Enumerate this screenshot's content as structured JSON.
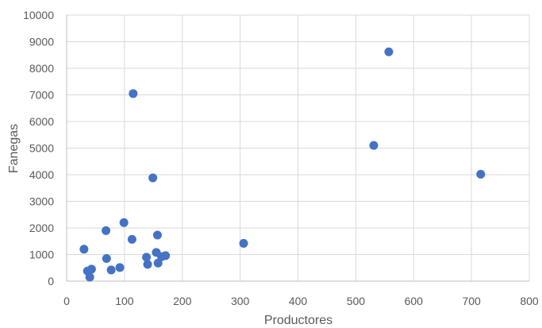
{
  "chart_data": {
    "type": "scatter",
    "title": "",
    "xlabel": "Productores",
    "ylabel": "Fanegas",
    "xlim": [
      0,
      800
    ],
    "ylim": [
      0,
      10000
    ],
    "x_ticks": [
      "0",
      "100",
      "200",
      "300",
      "400",
      "500",
      "600",
      "700",
      "800"
    ],
    "y_ticks": [
      "0",
      "1000",
      "2000",
      "3000",
      "4000",
      "5000",
      "6000",
      "7000",
      "8000",
      "9000",
      "10000"
    ],
    "grid": true,
    "legend": "none",
    "marker_color": "#4472c4",
    "series": [
      {
        "points": [
          {
            "x": 30,
            "y": 1200
          },
          {
            "x": 36,
            "y": 380
          },
          {
            "x": 40,
            "y": 150
          },
          {
            "x": 43,
            "y": 450
          },
          {
            "x": 68,
            "y": 1900
          },
          {
            "x": 69,
            "y": 850
          },
          {
            "x": 77,
            "y": 420
          },
          {
            "x": 92,
            "y": 510
          },
          {
            "x": 99,
            "y": 2200
          },
          {
            "x": 113,
            "y": 1570
          },
          {
            "x": 115,
            "y": 7050
          },
          {
            "x": 138,
            "y": 900
          },
          {
            "x": 140,
            "y": 630
          },
          {
            "x": 149,
            "y": 3880
          },
          {
            "x": 155,
            "y": 1080
          },
          {
            "x": 157,
            "y": 1730
          },
          {
            "x": 158,
            "y": 680
          },
          {
            "x": 164,
            "y": 920
          },
          {
            "x": 171,
            "y": 960
          },
          {
            "x": 306,
            "y": 1420
          },
          {
            "x": 531,
            "y": 5100
          },
          {
            "x": 557,
            "y": 8620
          },
          {
            "x": 716,
            "y": 4020
          }
        ]
      }
    ]
  }
}
